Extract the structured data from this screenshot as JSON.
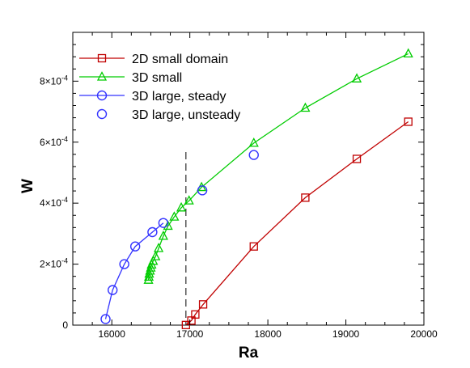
{
  "chart_data": {
    "type": "scatter",
    "title": "",
    "xlabel": "Ra",
    "ylabel": "W",
    "xlim": [
      15500,
      20000
    ],
    "ylim": [
      0,
      0.00096
    ],
    "x_ticks": [
      16000,
      17000,
      18000,
      19000,
      20000
    ],
    "x_tick_labels": [
      "16000",
      "17000",
      "18000",
      "19000",
      "20000"
    ],
    "y_ticks": [
      0,
      0.0002,
      0.0004,
      0.0006,
      0.0008
    ],
    "y_tick_labels": [
      {
        "mantissa": "0",
        "exponent": ""
      },
      {
        "mantissa": "2×10",
        "exponent": "-4"
      },
      {
        "mantissa": "4×10",
        "exponent": "-4"
      },
      {
        "mantissa": "6×10",
        "exponent": "-4"
      },
      {
        "mantissa": "8×10",
        "exponent": "-4"
      }
    ],
    "grid": false,
    "legend_position": "top-left",
    "reference_line": {
      "x": 16950,
      "style": "dashed",
      "color": "#000000"
    },
    "series": [
      {
        "name": "2D small domain",
        "color": "#c00000",
        "marker": "square",
        "line": true,
        "x": [
          16950,
          17020,
          17070,
          17170,
          17820,
          18480,
          19140,
          19800
        ],
        "y": [
          5e-07,
          1.5e-05,
          3.5e-05,
          6.8e-05,
          0.000258,
          0.000418,
          0.000545,
          0.000667
        ]
      },
      {
        "name": "3D small",
        "color": "#00cc00",
        "marker": "triangle",
        "line": true,
        "x": [
          16470,
          16475,
          16480,
          16490,
          16500,
          16510,
          16530,
          16560,
          16600,
          16660,
          16720,
          16800,
          16890,
          16990,
          17150,
          17820,
          18480,
          19140,
          19800
        ],
        "y": [
          0.000148,
          0.000158,
          0.000168,
          0.000178,
          0.000188,
          0.000198,
          0.00021,
          0.000225,
          0.000252,
          0.000292,
          0.000325,
          0.000355,
          0.000385,
          0.000408,
          0.000452,
          0.000597,
          0.000712,
          0.000808,
          0.00089
        ]
      },
      {
        "name": "3D large, steady",
        "color": "#3333ff",
        "marker": "circle",
        "line": true,
        "x": [
          15920,
          16010,
          16160,
          16300,
          16520,
          16660
        ],
        "y": [
          2e-05,
          0.000115,
          0.0002,
          0.000258,
          0.000305,
          0.000335
        ]
      },
      {
        "name": "3D large, unsteady",
        "color": "#3333ff",
        "marker": "circle",
        "line": false,
        "x": [
          17160,
          17820
        ],
        "y": [
          0.000442,
          0.000558
        ]
      }
    ]
  }
}
